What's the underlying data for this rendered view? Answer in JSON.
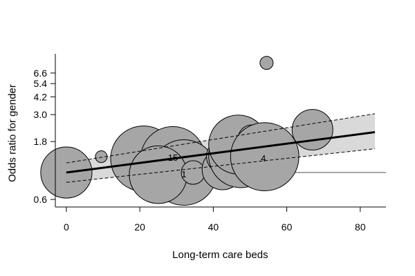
{
  "chart_data": {
    "type": "scatter",
    "subtype": "bubble meta-regression plot",
    "title": "",
    "xlabel": "Long-term care beds",
    "ylabel": "Odds ratio for gender",
    "x_scale": "linear",
    "y_scale": "log",
    "xlim": [
      -3,
      87
    ],
    "ylim": [
      0.52,
      9.5
    ],
    "x_ticks": [
      0,
      20,
      40,
      60,
      80
    ],
    "x_tick_labels": [
      "0",
      "20",
      "40",
      "60",
      "80"
    ],
    "y_ticks": [
      0.6,
      1.8,
      3.0,
      4.2,
      5.4,
      6.6
    ],
    "y_tick_labels": [
      "0.6",
      "1.8",
      "3.0",
      "4.2",
      "5.4",
      "6.6"
    ],
    "grid": false,
    "points": [
      {
        "x": 0.0,
        "y": 1.0,
        "weight": 3.9,
        "label": ""
      },
      {
        "x": 9.5,
        "y": 1.35,
        "weight": 0.9,
        "label": ""
      },
      {
        "x": 21.0,
        "y": 1.3,
        "weight": 5.0,
        "label": ""
      },
      {
        "x": 29.0,
        "y": 1.3,
        "weight": 4.9,
        "label": "15"
      },
      {
        "x": 32.0,
        "y": 1.0,
        "weight": 5.0,
        "label": "1"
      },
      {
        "x": 25.0,
        "y": 0.96,
        "weight": 4.4,
        "label": ""
      },
      {
        "x": 34.5,
        "y": 1.0,
        "weight": 1.8,
        "label": ""
      },
      {
        "x": 42.5,
        "y": 1.06,
        "weight": 3.1,
        "label": ""
      },
      {
        "x": 42.8,
        "y": 1.36,
        "weight": 2.6,
        "label": ""
      },
      {
        "x": 47.5,
        "y": 1.38,
        "weight": 4.9,
        "label": ""
      },
      {
        "x": 46.8,
        "y": 1.7,
        "weight": 4.5,
        "label": ""
      },
      {
        "x": 50.5,
        "y": 1.9,
        "weight": 2.1,
        "label": ""
      },
      {
        "x": 54.0,
        "y": 1.35,
        "weight": 5.2,
        "label": "4"
      },
      {
        "x": 67.0,
        "y": 2.25,
        "weight": 3.1,
        "label": ""
      },
      {
        "x": 54.5,
        "y": 8.0,
        "weight": 1.0,
        "label": ""
      }
    ],
    "regression": {
      "x": [
        0,
        84
      ],
      "y": [
        1.0,
        2.15
      ],
      "ci_lower": [
        0.83,
        1.57
      ],
      "ci_upper": [
        1.2,
        3.05
      ]
    },
    "reference_line": {
      "y": 1.0,
      "x_from": 54,
      "x_to": 87
    }
  }
}
